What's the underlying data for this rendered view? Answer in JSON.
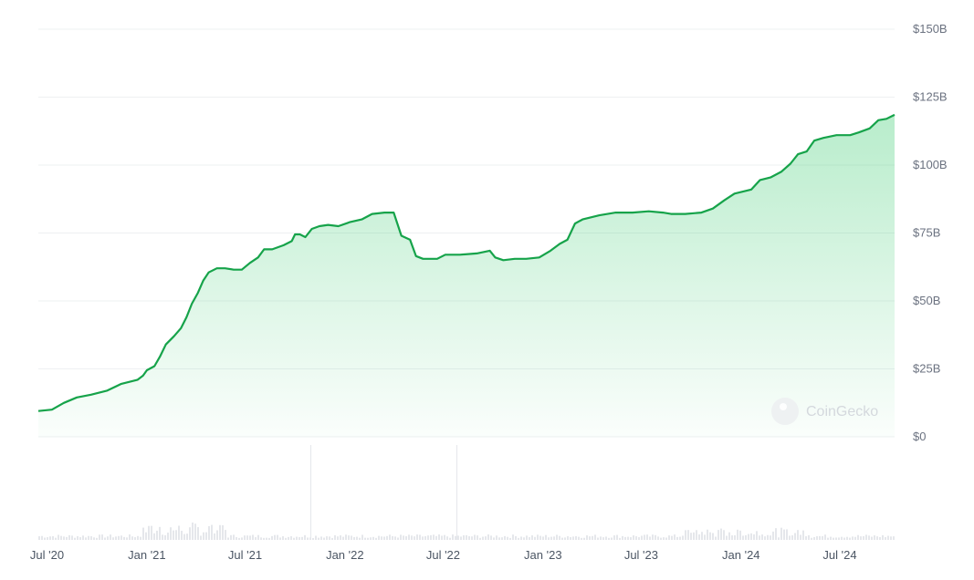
{
  "chart_data": {
    "type": "area",
    "title": "",
    "xlabel": "",
    "ylabel": "",
    "ylim": [
      0,
      150
    ],
    "y_ticks": [
      "$0",
      "$25B",
      "$50B",
      "$75B",
      "$100B",
      "$125B",
      "$150B"
    ],
    "y_tick_values": [
      0,
      25,
      50,
      75,
      100,
      125,
      150
    ],
    "x_ticks": [
      "Jul '20",
      "Jan '21",
      "Jul '21",
      "Jan '22",
      "Jul '22",
      "Jan '23",
      "Jul '23",
      "Jan '24",
      "Jul '24"
    ],
    "x_tick_dates": [
      "2020-07-01",
      "2021-01-01",
      "2021-07-01",
      "2022-01-01",
      "2022-07-01",
      "2023-01-01",
      "2023-07-01",
      "2024-01-01",
      "2024-07-01"
    ],
    "x_range": [
      "2020-06-15",
      "2024-10-10"
    ],
    "grid": true,
    "series": [
      {
        "name": "",
        "color": "#16a34a",
        "points": [
          [
            "2020-06-15",
            9.5
          ],
          [
            "2020-07-10",
            10
          ],
          [
            "2020-08-01",
            12.5
          ],
          [
            "2020-08-25",
            14.5
          ],
          [
            "2020-09-20",
            15.5
          ],
          [
            "2020-10-20",
            17
          ],
          [
            "2020-11-15",
            19.5
          ],
          [
            "2020-12-15",
            21
          ],
          [
            "2020-12-25",
            22.5
          ],
          [
            "2021-01-01",
            24.5
          ],
          [
            "2021-01-15",
            26
          ],
          [
            "2021-01-25",
            29.5
          ],
          [
            "2021-02-05",
            34
          ],
          [
            "2021-02-20",
            37
          ],
          [
            "2021-03-05",
            40
          ],
          [
            "2021-03-15",
            44
          ],
          [
            "2021-03-25",
            49
          ],
          [
            "2021-04-05",
            53
          ],
          [
            "2021-04-15",
            57.5
          ],
          [
            "2021-04-25",
            60.5
          ],
          [
            "2021-05-10",
            62
          ],
          [
            "2021-05-25",
            62
          ],
          [
            "2021-06-10",
            61.5
          ],
          [
            "2021-06-25",
            61.5
          ],
          [
            "2021-07-10",
            64
          ],
          [
            "2021-07-25",
            66
          ],
          [
            "2021-08-05",
            69
          ],
          [
            "2021-08-20",
            69
          ],
          [
            "2021-09-10",
            70.5
          ],
          [
            "2021-09-25",
            72
          ],
          [
            "2021-10-01",
            74.5
          ],
          [
            "2021-10-10",
            74.5
          ],
          [
            "2021-10-20",
            73.5
          ],
          [
            "2021-11-01",
            76.5
          ],
          [
            "2021-11-15",
            77.5
          ],
          [
            "2021-12-01",
            78
          ],
          [
            "2021-12-20",
            77.5
          ],
          [
            "2022-01-10",
            79
          ],
          [
            "2022-02-01",
            80
          ],
          [
            "2022-02-20",
            82
          ],
          [
            "2022-03-15",
            82.5
          ],
          [
            "2022-04-01",
            82.5
          ],
          [
            "2022-04-15",
            74
          ],
          [
            "2022-05-01",
            72.5
          ],
          [
            "2022-05-12",
            66.5
          ],
          [
            "2022-05-25",
            65.5
          ],
          [
            "2022-06-20",
            65.5
          ],
          [
            "2022-07-05",
            67
          ],
          [
            "2022-08-01",
            67
          ],
          [
            "2022-09-01",
            67.5
          ],
          [
            "2022-09-25",
            68.5
          ],
          [
            "2022-10-05",
            66
          ],
          [
            "2022-10-20",
            65
          ],
          [
            "2022-11-10",
            65.5
          ],
          [
            "2022-12-01",
            65.5
          ],
          [
            "2022-12-25",
            66
          ],
          [
            "2023-01-15",
            68.5
          ],
          [
            "2023-02-01",
            71
          ],
          [
            "2023-02-15",
            72.5
          ],
          [
            "2023-03-01",
            78.5
          ],
          [
            "2023-03-15",
            80
          ],
          [
            "2023-04-15",
            81.5
          ],
          [
            "2023-05-15",
            82.5
          ],
          [
            "2023-06-15",
            82.5
          ],
          [
            "2023-07-15",
            83
          ],
          [
            "2023-08-10",
            82.5
          ],
          [
            "2023-08-25",
            82
          ],
          [
            "2023-09-20",
            82
          ],
          [
            "2023-10-20",
            82.5
          ],
          [
            "2023-11-10",
            84
          ],
          [
            "2023-12-01",
            87
          ],
          [
            "2023-12-20",
            89.5
          ],
          [
            "2024-01-20",
            91
          ],
          [
            "2024-02-05",
            94.5
          ],
          [
            "2024-02-25",
            95.5
          ],
          [
            "2024-03-15",
            97.5
          ],
          [
            "2024-04-01",
            100.5
          ],
          [
            "2024-04-15",
            104
          ],
          [
            "2024-05-01",
            105
          ],
          [
            "2024-05-15",
            109
          ],
          [
            "2024-06-01",
            110
          ],
          [
            "2024-06-25",
            111
          ],
          [
            "2024-07-20",
            111
          ],
          [
            "2024-08-05",
            112
          ],
          [
            "2024-08-25",
            113.5
          ],
          [
            "2024-09-10",
            116.5
          ],
          [
            "2024-09-25",
            117
          ],
          [
            "2024-10-10",
            118.5
          ]
        ]
      }
    ],
    "volume_color": "#e5e7eb",
    "watermark": "CoinGecko"
  }
}
